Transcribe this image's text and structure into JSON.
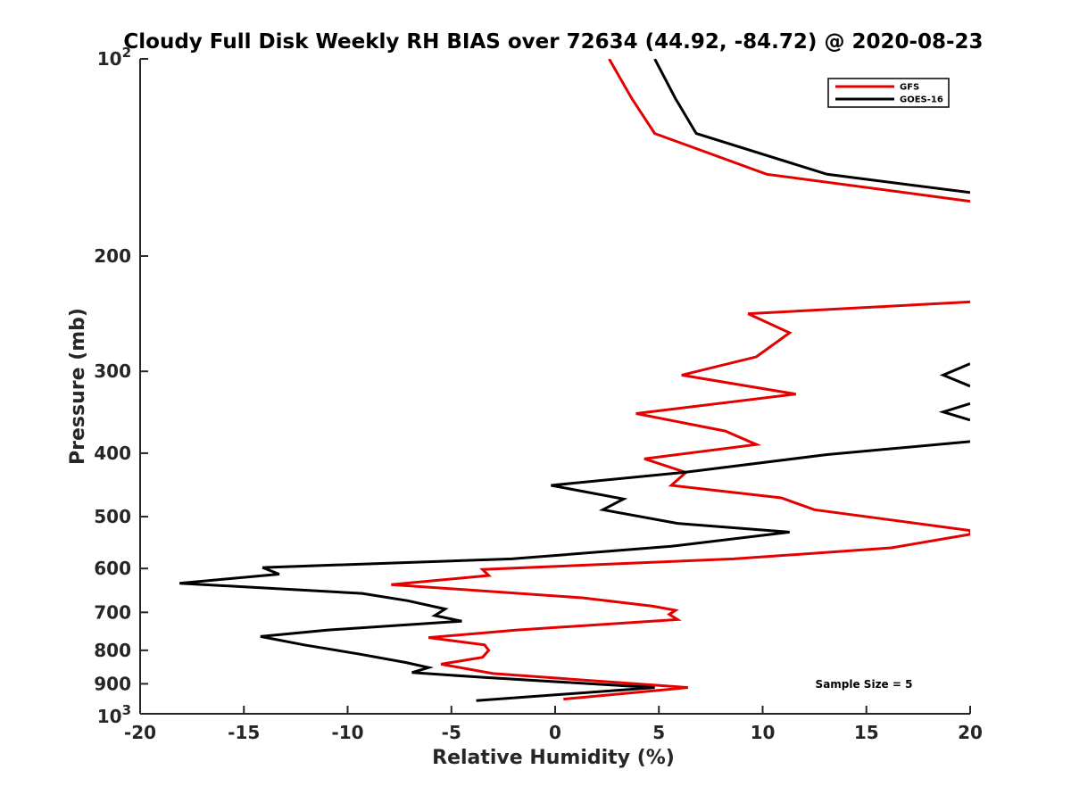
{
  "chart_data": {
    "type": "line",
    "title": "Cloudy Full Disk Weekly RH BIAS over 72634 (44.92, -84.72) @ 2020-08-23",
    "xlabel": "Relative Humidity (%)",
    "ylabel": "Pressure (mb)",
    "xlim": [
      -20,
      20
    ],
    "ylim": [
      100,
      1000
    ],
    "y_scale": "log",
    "y_reversed": true,
    "x_ticks": [
      "-20",
      "-15",
      "-10",
      "-5",
      "0",
      "5",
      "10",
      "15",
      "20"
    ],
    "y_ticks": [
      {
        "value": 100,
        "label": "10",
        "sup": "2"
      },
      {
        "value": 200,
        "label": "200",
        "sup": ""
      },
      {
        "value": 300,
        "label": "300",
        "sup": ""
      },
      {
        "value": 400,
        "label": "400",
        "sup": ""
      },
      {
        "value": 500,
        "label": "500",
        "sup": ""
      },
      {
        "value": 600,
        "label": "600",
        "sup": ""
      },
      {
        "value": 700,
        "label": "700",
        "sup": ""
      },
      {
        "value": 800,
        "label": "800",
        "sup": ""
      },
      {
        "value": 900,
        "label": "900",
        "sup": ""
      },
      {
        "value": 1000,
        "label": "10",
        "sup": "3"
      }
    ],
    "legend_position": "top-right",
    "grid": false,
    "annotation": "Sample Size = 5",
    "series": [
      {
        "name": "GFS",
        "color": "#e50000",
        "segments": [
          [
            [
              2.6,
              100
            ],
            [
              3.7,
              115
            ],
            [
              4.8,
              130
            ],
            [
              10.2,
              150
            ],
            [
              20,
              165
            ]
          ],
          [
            [
              20,
              235
            ],
            [
              9.3,
              245
            ],
            [
              11.3,
              262
            ],
            [
              9.7,
              285
            ],
            [
              6.1,
              304
            ],
            [
              11.6,
              325
            ],
            [
              3.9,
              348
            ],
            [
              8.2,
              370
            ],
            [
              9.7,
              388
            ],
            [
              4.3,
              408
            ],
            [
              6.3,
              428
            ],
            [
              5.6,
              448
            ],
            [
              10.9,
              468
            ],
            [
              12.5,
              488
            ],
            [
              20,
              525
            ],
            [
              20,
              532
            ],
            [
              16.2,
              558
            ],
            [
              8.6,
              580
            ],
            [
              -3.5,
              602
            ],
            [
              -3.2,
              615
            ],
            [
              -7.9,
              635
            ],
            [
              1.3,
              665
            ],
            [
              4.7,
              685
            ],
            [
              5.8,
              695
            ],
            [
              5.5,
              705
            ],
            [
              5.9,
              718
            ],
            [
              -1.9,
              745
            ],
            [
              -6.1,
              765
            ],
            [
              -3.4,
              785
            ],
            [
              -3.2,
              800
            ],
            [
              -3.5,
              820
            ],
            [
              -5.5,
              840
            ],
            [
              -3.0,
              868
            ],
            [
              6.4,
              912
            ],
            [
              0.4,
              950
            ]
          ]
        ]
      },
      {
        "name": "GOES-16",
        "color": "#000000",
        "segments": [
          [
            [
              4.8,
              100
            ],
            [
              5.8,
              115
            ],
            [
              6.8,
              130
            ],
            [
              13.1,
              150
            ],
            [
              20,
              160
            ]
          ],
          [
            [
              20,
              292
            ],
            [
              18.7,
              304
            ],
            [
              20,
              316
            ]
          ],
          [
            [
              20,
              336
            ],
            [
              18.7,
              346
            ],
            [
              20,
              356
            ]
          ],
          [
            [
              20,
              384
            ],
            [
              13.1,
              402
            ],
            [
              6.2,
              428
            ],
            [
              -0.2,
              448
            ],
            [
              3.3,
              470
            ],
            [
              2.3,
              488
            ],
            [
              5.9,
              512
            ],
            [
              11.3,
              528
            ],
            [
              5.6,
              555
            ],
            [
              -2.1,
              580
            ],
            [
              -14.1,
              598
            ],
            [
              -13.3,
              612
            ],
            [
              -18.1,
              632
            ],
            [
              -9.3,
              655
            ],
            [
              -7.1,
              672
            ],
            [
              -5.3,
              692
            ],
            [
              -5.8,
              708
            ],
            [
              -4.5,
              722
            ],
            [
              -11.0,
              745
            ],
            [
              -14.2,
              762
            ],
            [
              -12.1,
              785
            ],
            [
              -9.5,
              810
            ],
            [
              -7.2,
              835
            ],
            [
              -6.1,
              850
            ],
            [
              -6.9,
              865
            ],
            [
              -3.4,
              880
            ],
            [
              4.8,
              912
            ],
            [
              -3.8,
              955
            ]
          ]
        ]
      }
    ]
  }
}
